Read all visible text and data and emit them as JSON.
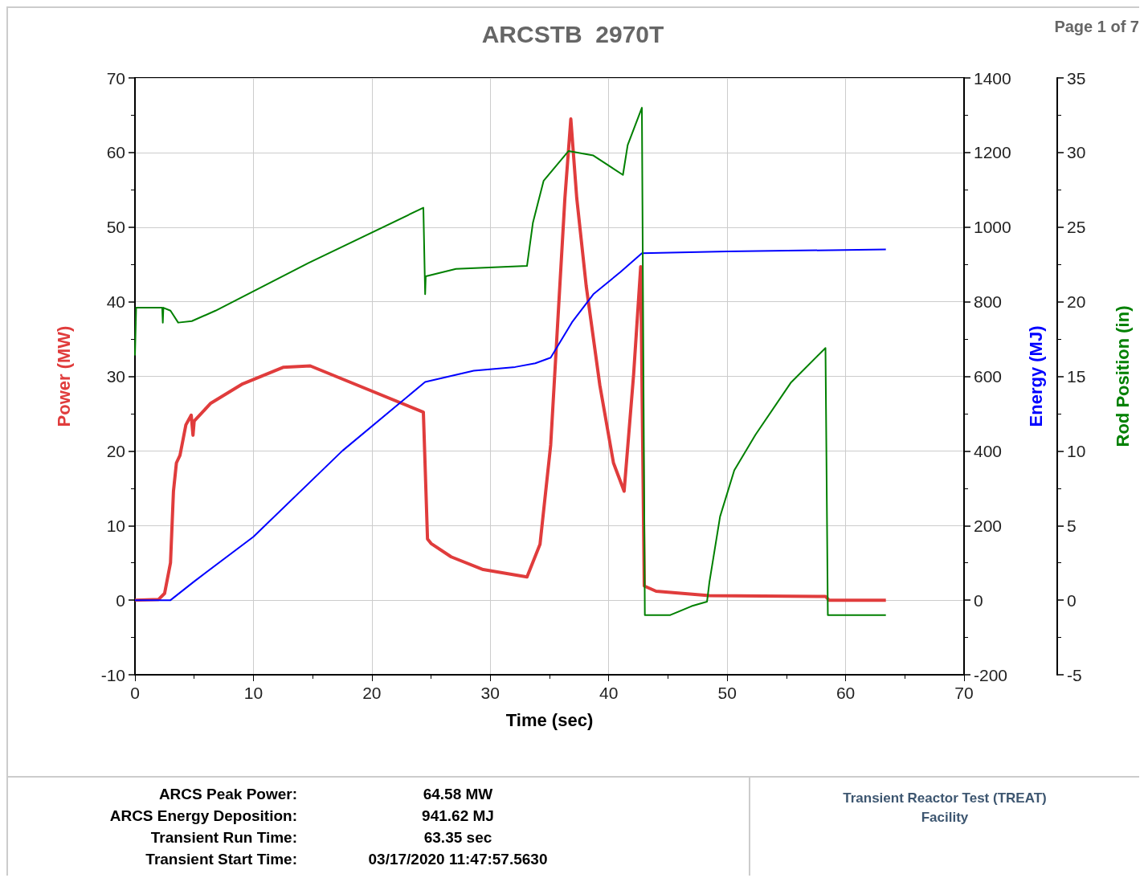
{
  "chart_data": {
    "type": "line",
    "title": "ARCSTB  2970T",
    "xlabel": "Time (sec)",
    "ylabel": "Power (MW)",
    "y2label": "Energy (MJ)",
    "y3label": "Rod Position (in)",
    "xlim": [
      0,
      70
    ],
    "xticks": [
      0,
      10,
      20,
      30,
      40,
      50,
      60,
      70
    ],
    "ylim": [
      -10,
      70
    ],
    "yticks": [
      -10,
      0,
      10,
      20,
      30,
      40,
      50,
      60,
      70
    ],
    "y2lim": [
      -200,
      1400
    ],
    "y2ticks": [
      -200,
      0,
      200,
      400,
      600,
      800,
      1000,
      1200,
      1400
    ],
    "y3lim": [
      -5,
      35
    ],
    "y3ticks": [
      -5,
      0,
      5,
      10,
      15,
      20,
      25,
      30,
      35
    ],
    "grid": true,
    "series": [
      {
        "color": "#e03c3c",
        "x": [
          0,
          2.0,
          2.5,
          3.0,
          3.25,
          3.5,
          3.8,
          4.3,
          4.75,
          4.9,
          5.0,
          6.4,
          9.1,
          12.5,
          14.8,
          24.35,
          24.7,
          25.0,
          26.7,
          29.4,
          33.1,
          34.2,
          35.1,
          35.7,
          36.3,
          36.8,
          37.3,
          38.1,
          39.25,
          40.4,
          41.3,
          42.1,
          42.7,
          43.0,
          44.0,
          48.5,
          58.3,
          58.6,
          63.4
        ],
        "values": [
          0,
          0.1,
          0.9,
          5,
          14.6,
          18.4,
          19.4,
          23.5,
          24.8,
          22.1,
          24,
          26.4,
          29,
          31.2,
          31.4,
          25.2,
          8.2,
          7.6,
          5.8,
          4.1,
          3.1,
          7.5,
          20.8,
          37.4,
          53.9,
          64.5,
          53.9,
          42.1,
          28.8,
          18.4,
          14.6,
          30.2,
          44.7,
          1.9,
          1.2,
          0.6,
          0.5,
          0,
          0
        ]
      },
      {
        "color": "#0000ff",
        "axis": "y2",
        "x": [
          0,
          3.0,
          5.0,
          10.0,
          17.5,
          24.5,
          28.6,
          32.1,
          33.8,
          35.1,
          36.9,
          38.7,
          41.0,
          42.8,
          50.0,
          63.4
        ],
        "values": [
          0,
          0,
          50,
          170,
          400,
          585,
          615,
          625,
          635,
          650,
          745,
          820,
          880,
          930,
          935,
          940
        ]
      },
      {
        "color": "#008000",
        "axis": "y3",
        "x": [
          0,
          0.1,
          2.3,
          2.35,
          2.4,
          3.0,
          3.65,
          4.8,
          6.8,
          14.65,
          24.35,
          24.5,
          24.55,
          27.1,
          33.1,
          33.6,
          34.5,
          36.6,
          38.7,
          41.2,
          41.6,
          42.8,
          43.05,
          45.2,
          47.0,
          48.3,
          48.5,
          49.4,
          50.6,
          52.4,
          55.4,
          58.3,
          58.5,
          63.4
        ],
        "values": [
          16.4,
          19.6,
          19.6,
          18.6,
          19.6,
          19.4,
          18.6,
          18.7,
          19.4,
          22.6,
          26.3,
          20.5,
          21.7,
          22.2,
          22.4,
          25.3,
          28.1,
          30.1,
          29.8,
          28.5,
          30.5,
          33.0,
          -1,
          -1,
          -0.4,
          -0.1,
          1.2,
          5.6,
          8.7,
          11.1,
          14.6,
          16.9,
          -1,
          -1
        ]
      }
    ],
    "annotations": [
      "Page 1 of 7",
      "ARCS Peak Power:",
      "64.58 MW",
      "ARCS Energy Deposition:",
      "941.62 MJ",
      "Transient Run Time:",
      "63.35 sec",
      "Transient Start Time:",
      "03/17/2020 11:47:57.5630",
      "Transient Reactor Test (TREAT) Facility"
    ]
  }
}
